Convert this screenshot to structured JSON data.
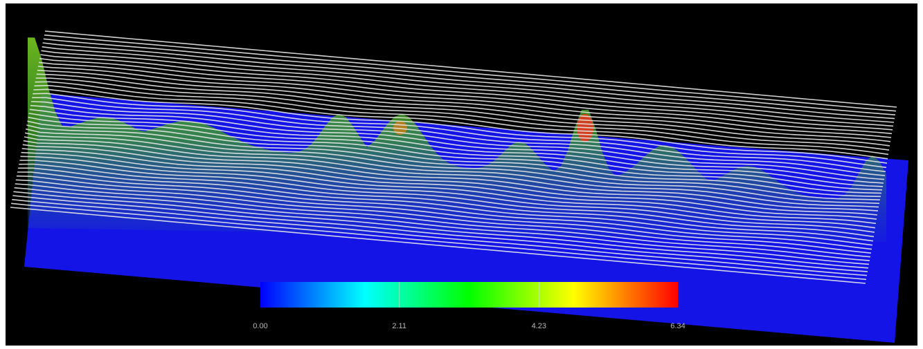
{
  "colorbar": {
    "range": [
      0,
      6.34
    ],
    "colors": [
      "#0000ff",
      "#00ffff",
      "#00ff00",
      "#ffff00",
      "#ff0000"
    ],
    "ticks": [
      {
        "value": 0,
        "label": "0.00"
      },
      {
        "value": 2.11,
        "label": "2.11"
      },
      {
        "value": 4.23,
        "label": "4.23"
      },
      {
        "value": 6.34,
        "label": "6.34"
      }
    ]
  }
}
